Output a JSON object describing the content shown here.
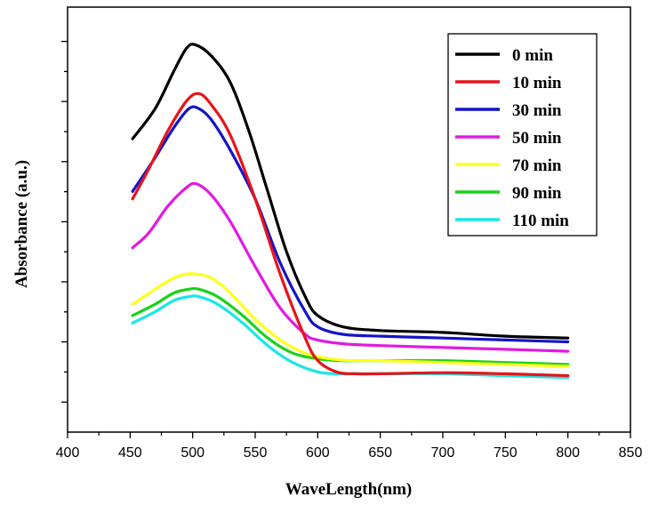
{
  "chart_data": {
    "type": "line",
    "title": "",
    "xlabel": "WaveLength(nm)",
    "ylabel": "Absorbance (a.u.)",
    "xlim": [
      400,
      850
    ],
    "xticks": [
      400,
      450,
      500,
      550,
      600,
      650,
      700,
      750,
      800,
      850
    ],
    "y_tick_labels_shown": false,
    "grid": false,
    "legend_position": "top-right",
    "series": [
      {
        "name": "0 min",
        "color": "#000000",
        "x": [
          452,
          470,
          485,
          495,
          502,
          515,
          530,
          545,
          560,
          575,
          590,
          600,
          620,
          650,
          700,
          750,
          800
        ],
        "y": [
          0.78,
          0.86,
          0.96,
          1.02,
          1.03,
          1.0,
          0.93,
          0.8,
          0.64,
          0.48,
          0.36,
          0.31,
          0.28,
          0.27,
          0.265,
          0.255,
          0.25
        ]
      },
      {
        "name": "10 min",
        "color": "#e8141a",
        "x": [
          452,
          465,
          480,
          495,
          505,
          515,
          530,
          550,
          570,
          590,
          600,
          615,
          630,
          650,
          700,
          750,
          800
        ],
        "y": [
          0.62,
          0.7,
          0.8,
          0.88,
          0.9,
          0.87,
          0.79,
          0.62,
          0.42,
          0.25,
          0.19,
          0.16,
          0.155,
          0.155,
          0.158,
          0.155,
          0.15
        ]
      },
      {
        "name": "30 min",
        "color": "#1414c8",
        "x": [
          452,
          470,
          485,
          497,
          505,
          515,
          530,
          550,
          570,
          590,
          600,
          620,
          650,
          700,
          750,
          800
        ],
        "y": [
          0.64,
          0.73,
          0.81,
          0.86,
          0.86,
          0.83,
          0.75,
          0.62,
          0.45,
          0.32,
          0.28,
          0.26,
          0.255,
          0.25,
          0.245,
          0.24
        ]
      },
      {
        "name": "50 min",
        "color": "#e21ae2",
        "x": [
          452,
          465,
          480,
          495,
          503,
          515,
          530,
          550,
          570,
          590,
          600,
          620,
          650,
          700,
          750,
          800
        ],
        "y": [
          0.49,
          0.53,
          0.6,
          0.65,
          0.66,
          0.63,
          0.56,
          0.44,
          0.33,
          0.26,
          0.245,
          0.235,
          0.23,
          0.225,
          0.22,
          0.215
        ]
      },
      {
        "name": "70 min",
        "color": "#ffff1a",
        "x": [
          452,
          470,
          485,
          495,
          503,
          515,
          530,
          550,
          570,
          590,
          610,
          630,
          650,
          700,
          750,
          800
        ],
        "y": [
          0.34,
          0.38,
          0.41,
          0.42,
          0.42,
          0.41,
          0.37,
          0.3,
          0.245,
          0.21,
          0.195,
          0.19,
          0.19,
          0.185,
          0.18,
          0.175
        ]
      },
      {
        "name": "90 min",
        "color": "#1ad21a",
        "x": [
          452,
          470,
          485,
          497,
          505,
          520,
          540,
          560,
          580,
          600,
          620,
          650,
          700,
          750,
          800
        ],
        "y": [
          0.31,
          0.34,
          0.37,
          0.38,
          0.38,
          0.36,
          0.31,
          0.25,
          0.21,
          0.195,
          0.19,
          0.19,
          0.19,
          0.185,
          0.18
        ]
      },
      {
        "name": "110 min",
        "color": "#1ae6e6",
        "x": [
          452,
          470,
          485,
          497,
          505,
          520,
          540,
          560,
          580,
          600,
          615,
          630,
          650,
          700,
          750,
          800
        ],
        "y": [
          0.29,
          0.32,
          0.35,
          0.36,
          0.36,
          0.34,
          0.29,
          0.23,
          0.185,
          0.16,
          0.155,
          0.155,
          0.155,
          0.155,
          0.15,
          0.145
        ]
      }
    ]
  }
}
